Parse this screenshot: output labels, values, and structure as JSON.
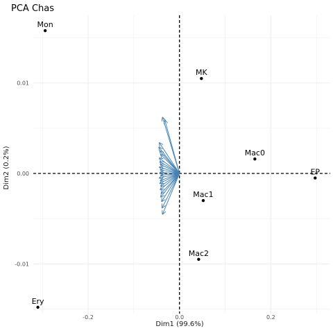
{
  "chart_data": {
    "type": "scatter",
    "title": "PCA Chas",
    "xlabel": "Dim1 (99.6%)",
    "ylabel": "Dim2 (0.2%)",
    "xlim": [
      -0.32,
      0.33
    ],
    "ylim": [
      -0.0155,
      0.0175
    ],
    "x_ticks": [
      {
        "value": -0.2,
        "label": "-0.2"
      },
      {
        "value": 0.0,
        "label": "0.0"
      },
      {
        "value": 0.2,
        "label": "0.2"
      }
    ],
    "y_ticks": [
      {
        "value": -0.01,
        "label": "-0.01"
      },
      {
        "value": 0.0,
        "label": "0.00"
      },
      {
        "value": 0.01,
        "label": "0.01"
      }
    ],
    "grid": true,
    "reference_lines": {
      "x": 0,
      "y": 0,
      "style": "dashed"
    },
    "points": [
      {
        "label": "Mon",
        "x": -0.294,
        "y": 0.0158
      },
      {
        "label": "MK",
        "x": 0.048,
        "y": 0.0105
      },
      {
        "label": "Mac0",
        "x": 0.165,
        "y": 0.0016
      },
      {
        "label": "EP",
        "x": 0.297,
        "y": -0.0005
      },
      {
        "label": "Mac1",
        "x": 0.052,
        "y": -0.003
      },
      {
        "label": "Mac2",
        "x": 0.042,
        "y": -0.0095
      },
      {
        "label": "Ery",
        "x": -0.31,
        "y": -0.0148
      }
    ],
    "arrow_color": "#4682B4",
    "point_color": "#000000",
    "arrows": [
      {
        "x": -0.037,
        "y": 0.0062
      },
      {
        "x": -0.032,
        "y": 0.0059
      },
      {
        "x": -0.044,
        "y": 0.0034
      },
      {
        "x": -0.045,
        "y": 0.0029
      },
      {
        "x": -0.043,
        "y": 0.0025
      },
      {
        "x": -0.041,
        "y": 0.0021
      },
      {
        "x": -0.044,
        "y": 0.0017
      },
      {
        "x": -0.043,
        "y": 0.0013
      },
      {
        "x": -0.042,
        "y": 0.001
      },
      {
        "x": -0.044,
        "y": 0.0007
      },
      {
        "x": -0.042,
        "y": 0.0004
      },
      {
        "x": -0.043,
        "y": 0.0001
      },
      {
        "x": -0.041,
        "y": -0.0002
      },
      {
        "x": -0.044,
        "y": -0.0005
      },
      {
        "x": -0.042,
        "y": -0.0008
      },
      {
        "x": -0.043,
        "y": -0.0011
      },
      {
        "x": -0.041,
        "y": -0.0014
      },
      {
        "x": -0.042,
        "y": -0.0018
      },
      {
        "x": -0.04,
        "y": -0.0022
      },
      {
        "x": -0.041,
        "y": -0.0026
      },
      {
        "x": -0.039,
        "y": -0.0031
      },
      {
        "x": -0.038,
        "y": -0.0038
      },
      {
        "x": -0.037,
        "y": -0.0045
      }
    ]
  }
}
